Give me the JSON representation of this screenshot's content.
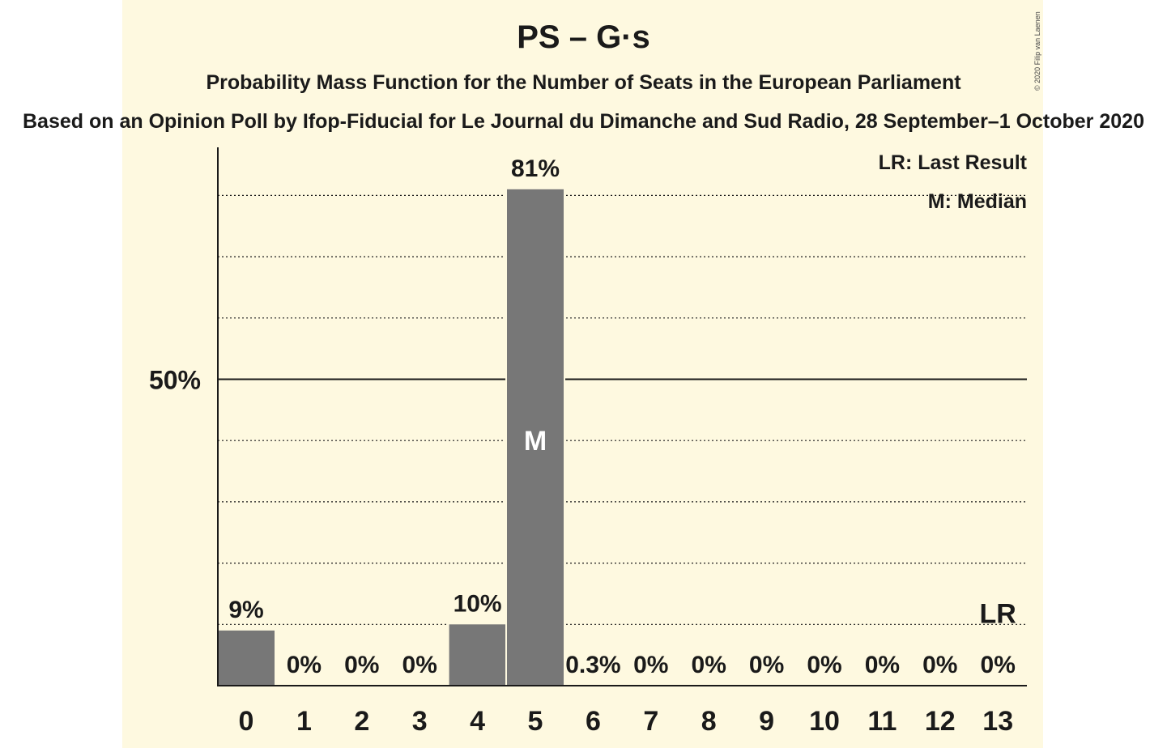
{
  "title": "PS – G·s",
  "subtitle": "Probability Mass Function for the Number of Seats in the European Parliament",
  "source": "Based on an Opinion Poll by Ifop-Fiducial for Le Journal du Dimanche and Sud Radio, 28 September–1 October 2020",
  "copyright": "© 2020 Filip van Laenen",
  "colors": {
    "background": "#fef9e0",
    "bar": "#777777",
    "text": "#1a1a1a"
  },
  "legend": {
    "last_result": "LR: Last Result",
    "median": "M: Median"
  },
  "chart_data": {
    "type": "bar",
    "categories": [
      "0",
      "1",
      "2",
      "3",
      "4",
      "5",
      "6",
      "7",
      "8",
      "9",
      "10",
      "11",
      "12",
      "13"
    ],
    "values": [
      9,
      0,
      0,
      0,
      10,
      81,
      0.3,
      0,
      0,
      0,
      0,
      0,
      0,
      0
    ],
    "value_labels": [
      "9%",
      "0%",
      "0%",
      "0%",
      "10%",
      "81%",
      "0.3%",
      "0%",
      "0%",
      "0%",
      "0%",
      "0%",
      "0%",
      "0%"
    ],
    "ylim": [
      0,
      85
    ],
    "ytick_label": "50%",
    "ytick_value": 50,
    "gridlines": [
      10,
      20,
      30,
      40,
      60,
      70,
      80
    ],
    "median_seat": "5",
    "median_marker": "M",
    "last_result_seat": "13",
    "last_result_marker": "LR",
    "legend_position": "top-right",
    "xlabel": "",
    "ylabel": ""
  }
}
